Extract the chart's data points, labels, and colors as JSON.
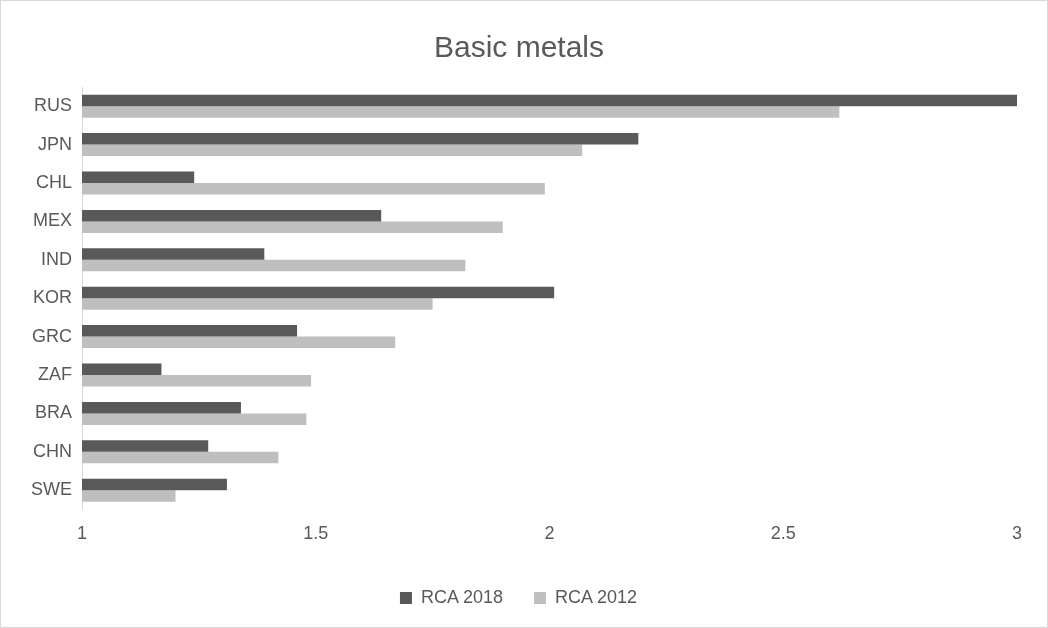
{
  "chart_data": {
    "type": "bar",
    "orientation": "horizontal",
    "title": "Basic metals",
    "categories": [
      "RUS",
      "JPN",
      "CHL",
      "MEX",
      "IND",
      "KOR",
      "GRC",
      "ZAF",
      "BRA",
      "CHN",
      "SWE"
    ],
    "series": [
      {
        "name": "RCA 2018",
        "color": "#595959",
        "values": [
          3.0,
          2.19,
          1.24,
          1.64,
          1.39,
          2.01,
          1.46,
          1.17,
          1.34,
          1.27,
          1.31
        ]
      },
      {
        "name": "RCA 2012",
        "color": "#bfbfbf",
        "values": [
          2.62,
          2.07,
          1.99,
          1.9,
          1.82,
          1.75,
          1.67,
          1.49,
          1.48,
          1.42,
          1.2
        ]
      }
    ],
    "xlim": [
      1,
      3
    ],
    "xticks": [
      1,
      1.5,
      2,
      2.5,
      3
    ],
    "grid": false,
    "legend": "bottom"
  }
}
